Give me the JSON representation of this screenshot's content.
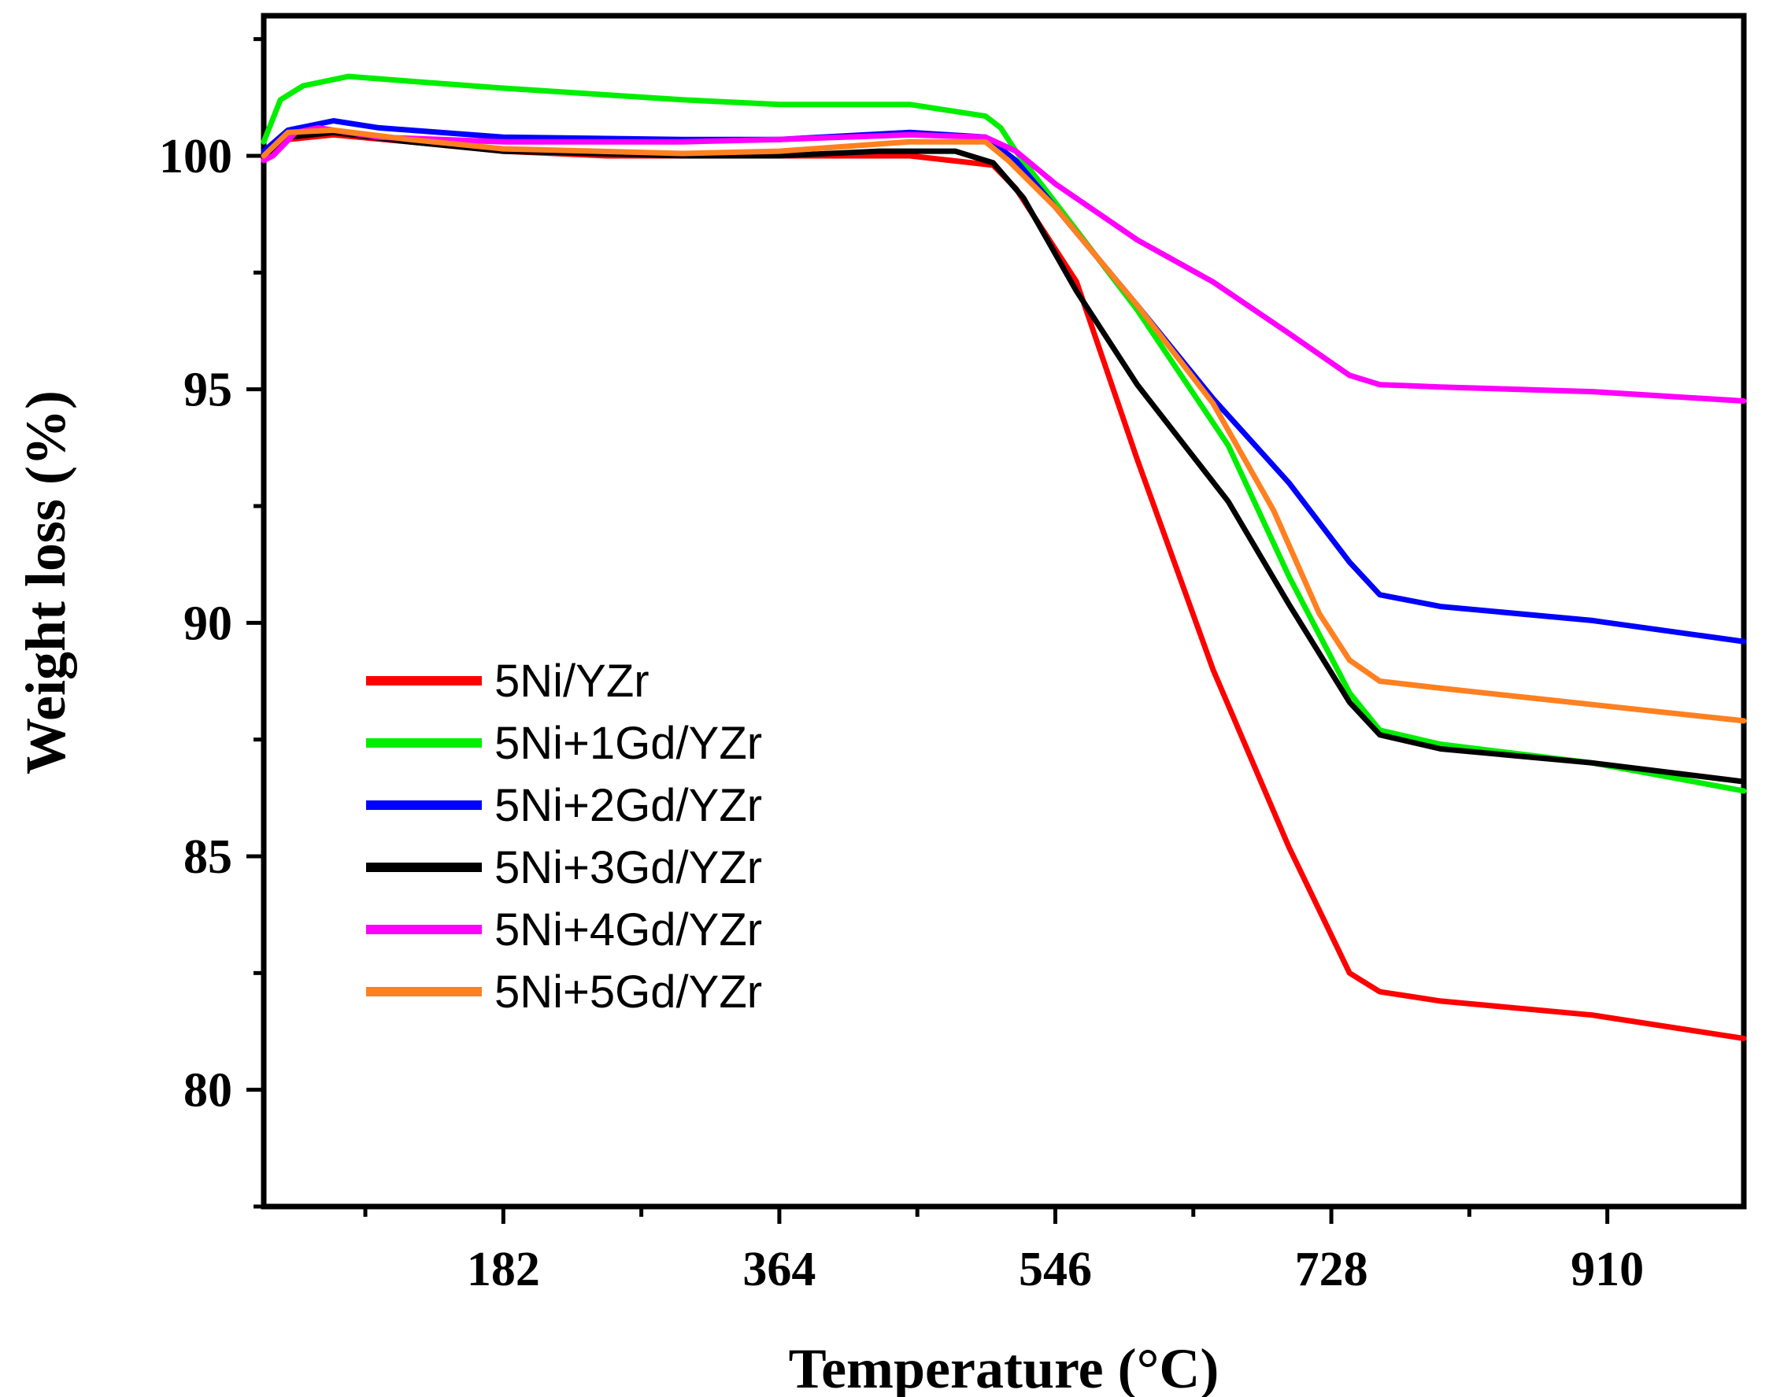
{
  "chart_data": {
    "type": "line",
    "title": "",
    "xlabel": "Temperature (°C)",
    "ylabel": "Weight loss (%)",
    "xlim": [
      24,
      1000
    ],
    "ylim": [
      77.5,
      103
    ],
    "x_ticks": [
      182,
      364,
      546,
      728,
      910
    ],
    "x_tick_labels": [
      "182",
      "364",
      "546",
      "728",
      "910"
    ],
    "y_ticks": [
      80,
      85,
      90,
      95,
      100
    ],
    "y_tick_labels": [
      "80",
      "85",
      "90",
      "95",
      "100"
    ],
    "legend_position": "center-left",
    "series": [
      {
        "name": "5Ni/YZr",
        "color": "#ff0000",
        "x": [
          24,
          40,
          70,
          120,
          182,
          250,
          364,
          450,
          505,
          520,
          560,
          600,
          650,
          700,
          740,
          760,
          800,
          900,
          1000
        ],
        "y": [
          100.0,
          100.35,
          100.45,
          100.3,
          100.1,
          100.0,
          100.0,
          100.0,
          99.8,
          99.3,
          97.3,
          93.5,
          89.0,
          85.2,
          82.5,
          82.1,
          81.9,
          81.6,
          81.1
        ]
      },
      {
        "name": "5Ni+1Gd/YZr",
        "color": "#00ee00",
        "x": [
          24,
          35,
          50,
          80,
          120,
          182,
          300,
          364,
          450,
          500,
          510,
          520,
          546,
          600,
          660,
          700,
          740,
          760,
          800,
          900,
          1000
        ],
        "y": [
          100.3,
          101.2,
          101.5,
          101.7,
          101.6,
          101.45,
          101.2,
          101.1,
          101.1,
          100.85,
          100.6,
          100.1,
          99.0,
          96.7,
          93.8,
          91.0,
          88.5,
          87.7,
          87.4,
          87.0,
          86.4
        ]
      },
      {
        "name": "5Ni+2Gd/YZr",
        "color": "#0000ff",
        "x": [
          24,
          40,
          70,
          100,
          182,
          300,
          364,
          450,
          500,
          520,
          546,
          600,
          650,
          700,
          740,
          760,
          800,
          900,
          1000
        ],
        "y": [
          100.1,
          100.55,
          100.75,
          100.6,
          100.4,
          100.35,
          100.35,
          100.5,
          100.4,
          99.9,
          98.9,
          96.8,
          94.8,
          93.0,
          91.3,
          90.6,
          90.35,
          90.05,
          89.6
        ]
      },
      {
        "name": "5Ni+3Gd/YZr",
        "color": "#000000",
        "x": [
          24,
          40,
          70,
          120,
          182,
          300,
          364,
          430,
          480,
          505,
          525,
          560,
          600,
          660,
          700,
          740,
          760,
          800,
          900,
          1000
        ],
        "y": [
          100.0,
          100.4,
          100.5,
          100.3,
          100.1,
          100.0,
          100.0,
          100.1,
          100.1,
          99.85,
          99.1,
          97.1,
          95.1,
          92.6,
          90.4,
          88.3,
          87.6,
          87.3,
          87.0,
          86.6
        ]
      },
      {
        "name": "5Ni+4Gd/YZr",
        "color": "#ff00ff",
        "x": [
          24,
          30,
          45,
          60,
          100,
          182,
          300,
          364,
          450,
          500,
          520,
          546,
          600,
          650,
          700,
          740,
          760,
          800,
          900,
          1000
        ],
        "y": [
          99.9,
          100.0,
          100.5,
          100.6,
          100.4,
          100.3,
          100.3,
          100.35,
          100.45,
          100.4,
          100.1,
          99.4,
          98.2,
          97.3,
          96.2,
          95.3,
          95.1,
          95.05,
          94.95,
          94.75
        ]
      },
      {
        "name": "5Ni+5Gd/YZr",
        "color": "#ff8020",
        "x": [
          24,
          40,
          70,
          120,
          182,
          300,
          364,
          450,
          500,
          515,
          546,
          600,
          650,
          690,
          720,
          740,
          760,
          800,
          900,
          1000
        ],
        "y": [
          100.0,
          100.5,
          100.55,
          100.35,
          100.15,
          100.05,
          100.1,
          100.3,
          100.3,
          99.9,
          98.9,
          96.8,
          94.7,
          92.4,
          90.2,
          89.2,
          88.75,
          88.6,
          88.25,
          87.9
        ]
      }
    ]
  }
}
